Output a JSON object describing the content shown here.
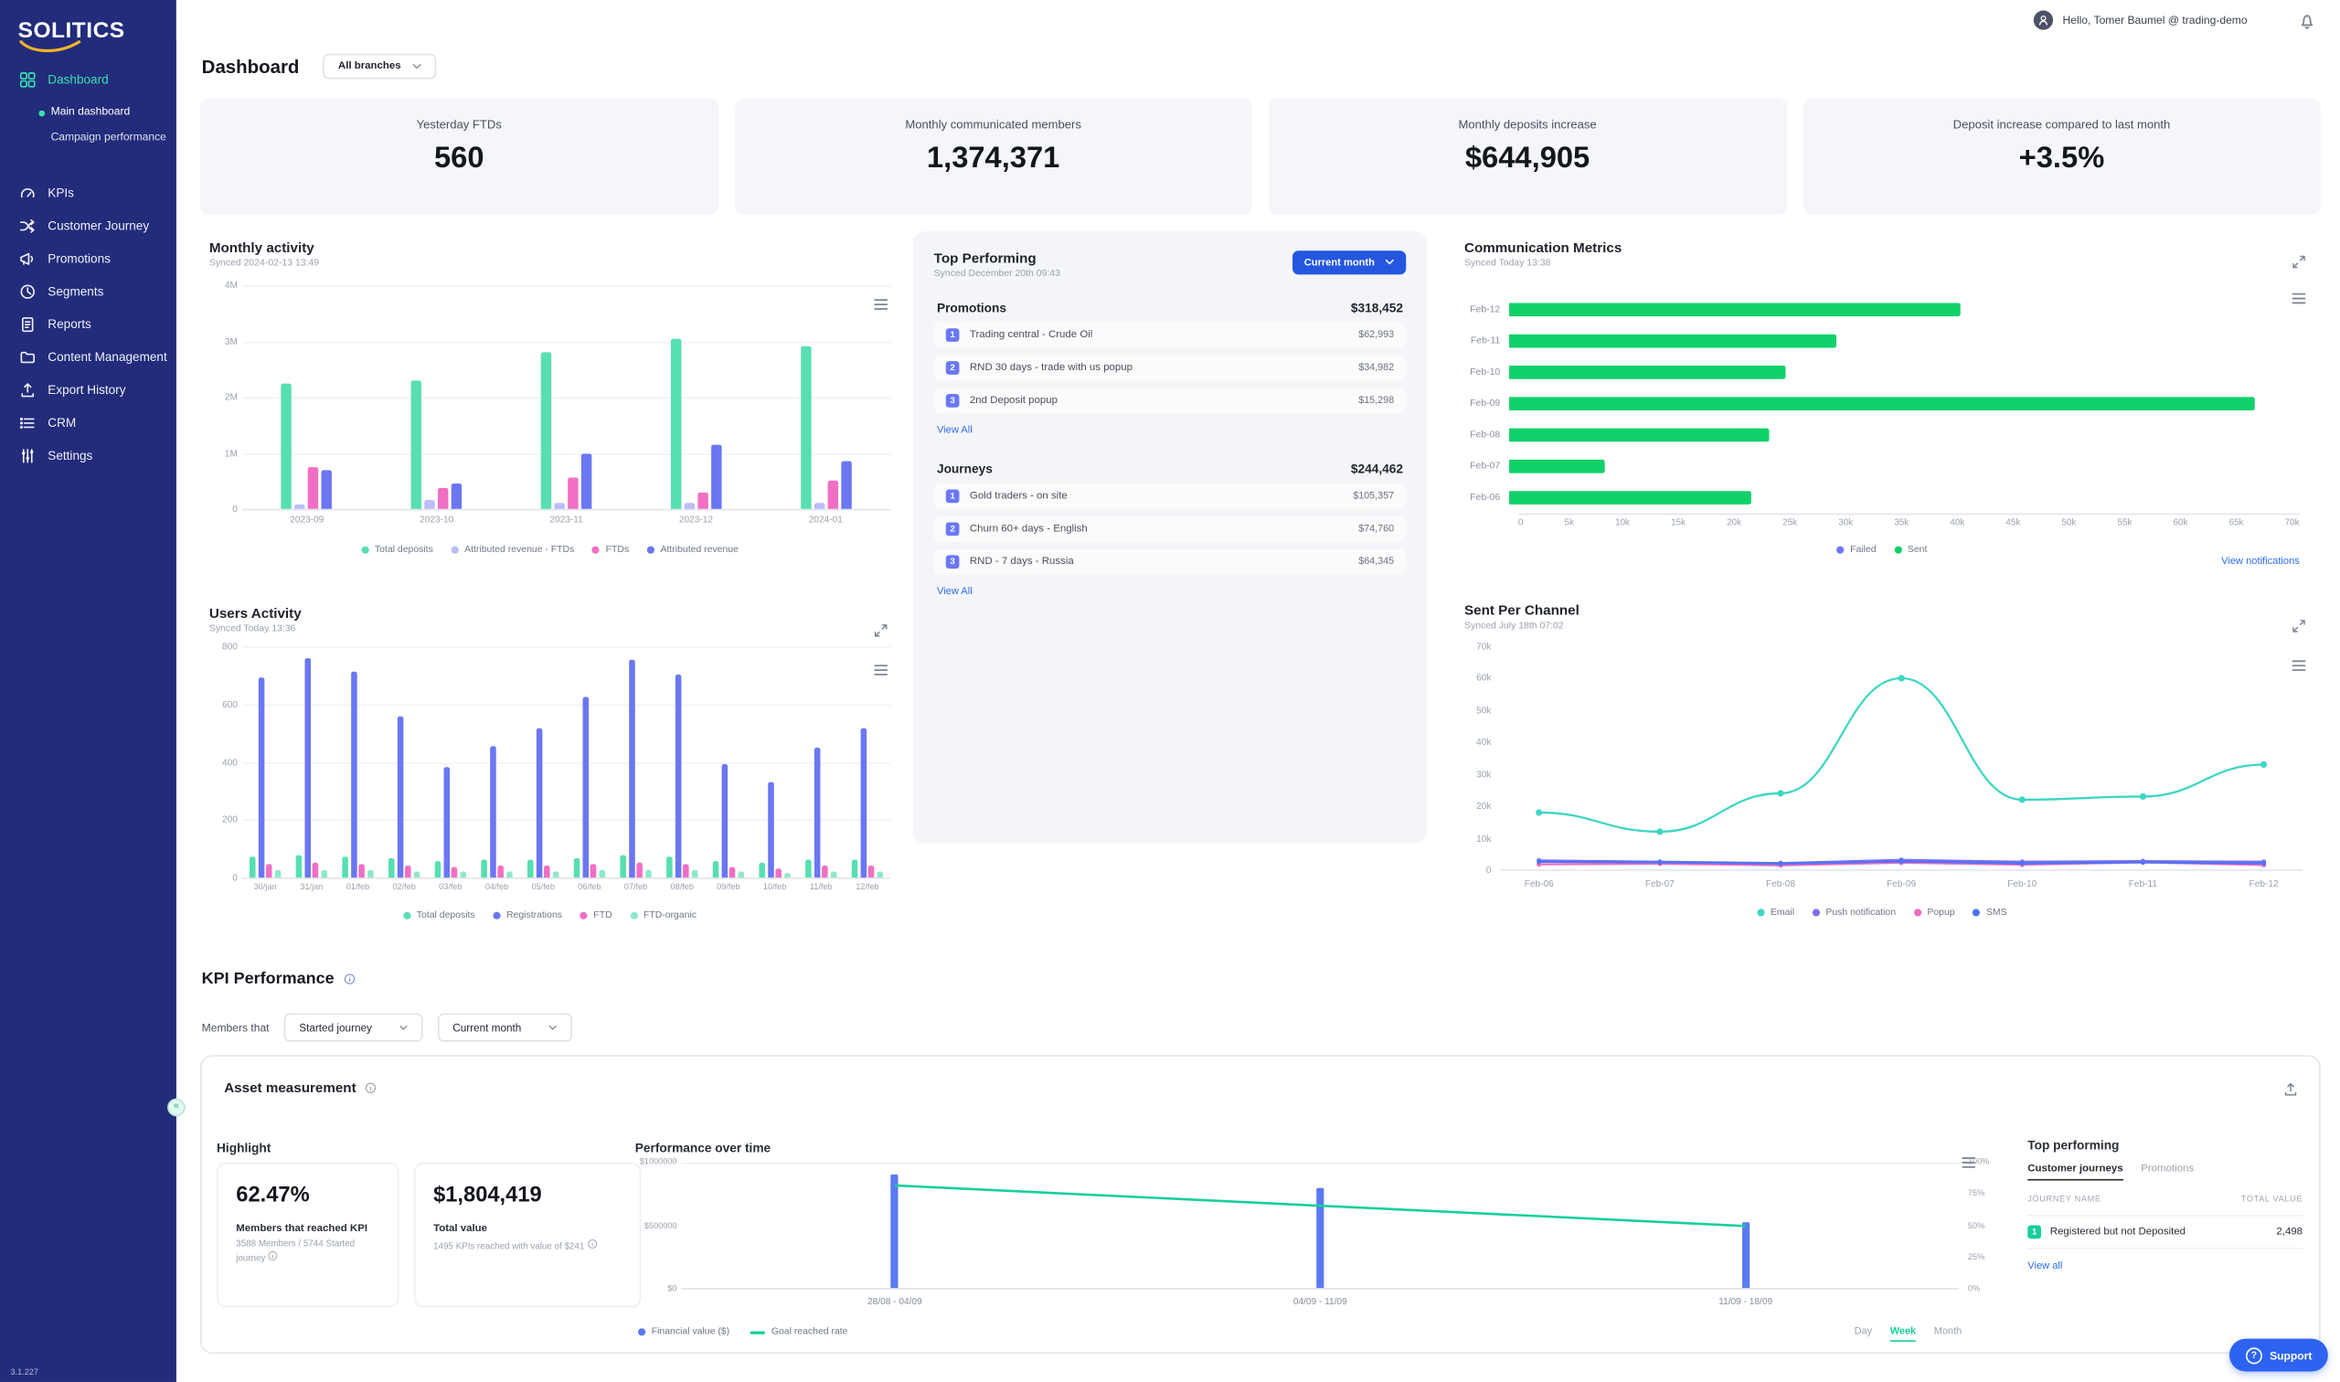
{
  "colors": {
    "accent_teal": "#38e0ac",
    "accent_indigo": "#6b77f2",
    "accent_pink": "#f06fc4",
    "accent_green": "#10d169",
    "accent_blue": "#2d63f0",
    "sidebar_bg": "#222c7b"
  },
  "sidebar": {
    "logo": "SOLITICS",
    "version": "3.1.227",
    "items": [
      {
        "label": "Dashboard",
        "icon": "dashboard-icon",
        "active": true,
        "children": [
          {
            "label": "Main dashboard",
            "active": true
          },
          {
            "label": "Campaign performance",
            "active": false
          }
        ]
      },
      {
        "label": "KPIs",
        "icon": "kpi-icon"
      },
      {
        "label": "Customer Journey",
        "icon": "journey-icon"
      },
      {
        "label": "Promotions",
        "icon": "promotions-icon"
      },
      {
        "label": "Segments",
        "icon": "segments-icon"
      },
      {
        "label": "Reports",
        "icon": "reports-icon"
      },
      {
        "label": "Content Management",
        "icon": "content-icon"
      },
      {
        "label": "Export History",
        "icon": "export-icon"
      },
      {
        "label": "CRM",
        "icon": "crm-icon"
      },
      {
        "label": "Settings",
        "icon": "settings-icon"
      }
    ]
  },
  "topbar": {
    "greeting": "Hello, Tomer Baumel @ trading-demo"
  },
  "header": {
    "title": "Dashboard",
    "branch_filter": "All branches"
  },
  "stats": [
    {
      "label": "Yesterday FTDs",
      "value": "560"
    },
    {
      "label": "Monthly communicated members",
      "value": "1,374,371"
    },
    {
      "label": "Monthly deposits increase",
      "value": "$644,905"
    },
    {
      "label": "Deposit increase compared to last month",
      "value": "+3.5%"
    }
  ],
  "monthly_activity": {
    "title": "Monthly activity",
    "synced": "Synced 2024-02-13 13:49",
    "chart": {
      "type": "bar",
      "categories": [
        "2023-09",
        "2023-10",
        "2023-11",
        "2023-12",
        "2024-01"
      ],
      "series": [
        {
          "name": "Total deposits",
          "color": "#57dfb2",
          "values": [
            2250000,
            2300000,
            2800000,
            3050000,
            2900000
          ]
        },
        {
          "name": "Attributed revenue - FTDs",
          "color": "#b9bdf8",
          "values": [
            80000,
            150000,
            100000,
            120000,
            100000
          ]
        },
        {
          "name": "FTDs",
          "color": "#f06fc4",
          "values": [
            750000,
            380000,
            560000,
            300000,
            500000
          ]
        },
        {
          "name": "Attributed revenue",
          "color": "#6b77f2",
          "values": [
            700000,
            450000,
            1000000,
            1150000,
            850000
          ]
        }
      ],
      "ymax": 4000000,
      "yticks": [
        "4M",
        "3M",
        "2M",
        "1M",
        "0"
      ]
    }
  },
  "top_performing": {
    "title": "Top Performing",
    "synced": "Synced December 20th 09:43",
    "period": "Current month",
    "sections": [
      {
        "label": "Promotions",
        "total": "$318,452",
        "view_all": "View All",
        "items": [
          {
            "rank": "1",
            "name": "Trading central - Crude Oil",
            "value": "$62,993"
          },
          {
            "rank": "2",
            "name": "RND 30 days - trade with us popup",
            "value": "$34,982"
          },
          {
            "rank": "3",
            "name": "2nd Deposit popup",
            "value": "$15,298"
          }
        ]
      },
      {
        "label": "Journeys",
        "total": "$244,462",
        "view_all": "View All",
        "items": [
          {
            "rank": "1",
            "name": "Gold traders - on site",
            "value": "$105,357"
          },
          {
            "rank": "2",
            "name": "Churn 60+ days - English",
            "value": "$74,760"
          },
          {
            "rank": "3",
            "name": "RND - 7 days - Russia",
            "value": "$64,345"
          }
        ]
      }
    ]
  },
  "communication_metrics": {
    "title": "Communication Metrics",
    "synced": "Synced Today 13:38",
    "link": "View notifications",
    "chart": {
      "type": "bar-horizontal",
      "categories": [
        "Feb-12",
        "Feb-11",
        "Feb-10",
        "Feb-09",
        "Feb-08",
        "Feb-07",
        "Feb-06"
      ],
      "values": [
        40000,
        29000,
        24500,
        66000,
        23000,
        8500,
        21500
      ],
      "color": "#10d169",
      "xmax": 70000,
      "xticks": [
        "0",
        "5k",
        "10k",
        "15k",
        "20k",
        "25k",
        "30k",
        "35k",
        "40k",
        "45k",
        "50k",
        "55k",
        "60k",
        "65k",
        "70k"
      ]
    },
    "legend": [
      {
        "label": "Failed",
        "color": "#6a79f7"
      },
      {
        "label": "Sent",
        "color": "#10d169"
      }
    ]
  },
  "users_activity": {
    "title": "Users Activity",
    "synced": "Synced Today 13:36",
    "chart": {
      "type": "bar",
      "categories": [
        "30/jan",
        "31/jan",
        "01/feb",
        "02/feb",
        "03/feb",
        "04/feb",
        "05/feb",
        "06/feb",
        "07/feb",
        "08/feb",
        "09/feb",
        "10/feb",
        "11/feb",
        "12/feb"
      ],
      "series": [
        {
          "name": "Total deposits",
          "color": "#57dfb2",
          "values": [
            70,
            75,
            70,
            65,
            55,
            60,
            60,
            65,
            75,
            70,
            55,
            50,
            60,
            60
          ]
        },
        {
          "name": "Registrations",
          "color": "#6b77f2",
          "values": [
            690,
            760,
            710,
            555,
            380,
            455,
            515,
            625,
            755,
            700,
            390,
            330,
            450,
            515
          ]
        },
        {
          "name": "FTD",
          "color": "#f06fc4",
          "values": [
            45,
            50,
            45,
            40,
            35,
            40,
            40,
            45,
            50,
            45,
            35,
            30,
            40,
            40
          ]
        },
        {
          "name": "FTD-organic",
          "color": "#8fe8c9",
          "values": [
            25,
            25,
            25,
            20,
            20,
            20,
            20,
            25,
            25,
            25,
            20,
            15,
            20,
            20
          ]
        }
      ],
      "ymax": 800,
      "yticks": [
        "800",
        "600",
        "400",
        "200",
        "0"
      ]
    }
  },
  "sent_per_channel": {
    "title": "Sent Per Channel",
    "synced": "Synced July 18th 07:02",
    "chart": {
      "type": "line",
      "x": [
        "Feb-06",
        "Feb-07",
        "Feb-08",
        "Feb-09",
        "Feb-10",
        "Feb-11",
        "Feb-12"
      ],
      "series": [
        {
          "name": "Email",
          "color": "#3ed6c2",
          "values": [
            18000,
            12000,
            24000,
            60000,
            22000,
            23000,
            33000
          ],
          "smooth": true
        },
        {
          "name": "Push notification",
          "color": "#7a6ff0",
          "values": [
            3000,
            2600,
            2200,
            3200,
            2600,
            2800,
            2600
          ]
        },
        {
          "name": "Popup",
          "color": "#ef6abf",
          "values": [
            1800,
            2000,
            1500,
            2300,
            1700,
            2400,
            1600
          ]
        },
        {
          "name": "SMS",
          "color": "#4f74f5",
          "values": [
            2600,
            2400,
            2000,
            2700,
            2100,
            2400,
            2100
          ]
        }
      ],
      "ymax": 70000,
      "yticks": [
        "70k",
        "60k",
        "50k",
        "40k",
        "30k",
        "20k",
        "10k",
        "0"
      ]
    }
  },
  "kpi_performance": {
    "title": "KPI Performance",
    "filter_label": "Members that",
    "filters": [
      "Started journey",
      "Current month"
    ],
    "asset": {
      "title": "Asset measurement",
      "highlight": {
        "label": "Highlight",
        "stats": [
          {
            "value": "62.47%",
            "label": "Members that reached KPI",
            "sub": "3588 Members / 5744 Started journey"
          },
          {
            "value": "$1,804,419",
            "label": "Total value",
            "sub": "1495 KPIs reached with value of $241"
          }
        ]
      },
      "performance": {
        "label": "Performance over time",
        "chart": {
          "type": "bar-line",
          "categories": [
            "28/08 - 04/09",
            "04/09 - 11/09",
            "11/09 - 18/09"
          ],
          "bars": {
            "name": "Financial value ($)",
            "color": "#5b79f0",
            "values": [
              900000,
              790000,
              520000
            ]
          },
          "line": {
            "name": "Goal reached rate",
            "color": "#17cf9a",
            "values": [
              82,
              66,
              50
            ]
          },
          "y_left": [
            "$1000000",
            "$500000",
            "$0"
          ],
          "y_right": [
            "100%",
            "75%",
            "50%",
            "25%",
            "0%"
          ],
          "ymax": 1000000,
          "line_max": 100
        },
        "range_toggle": [
          "Day",
          "Week",
          "Month"
        ],
        "active_range": "Week"
      },
      "top_performing": {
        "label": "Top performing",
        "tabs": [
          "Customer journeys",
          "Promotions"
        ],
        "active_tab": "Customer journeys",
        "columns": [
          "JOURNEY NAME",
          "TOTAL VALUE"
        ],
        "rows": [
          {
            "rank": "1",
            "name": "Registered but not Deposited",
            "value": "2,498"
          }
        ],
        "view_all": "View all"
      }
    }
  },
  "support": {
    "label": "Support"
  }
}
